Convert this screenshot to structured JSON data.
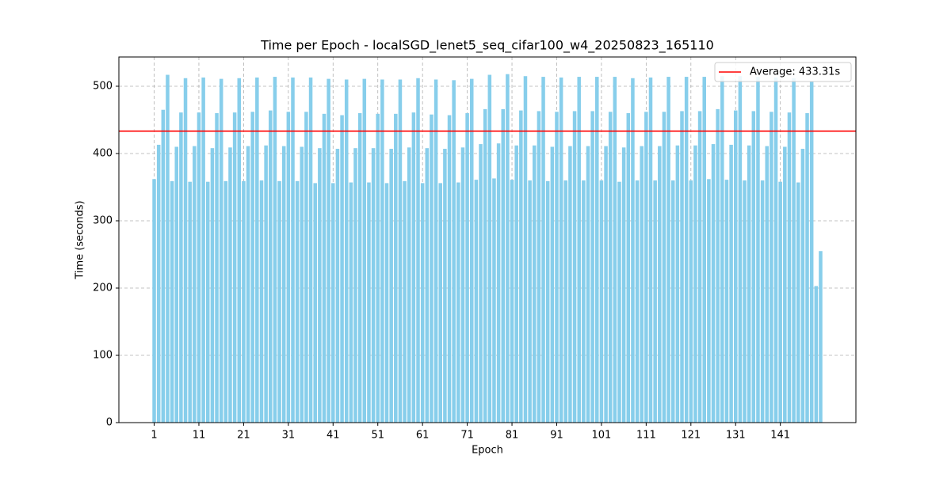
{
  "chart_data": {
    "type": "bar",
    "title": "Time per Epoch - localSGD_lenet5_seq_cifar100_w4_20250823_165110",
    "x_label": "Epoch",
    "y_label": "Time (seconds)",
    "x": [
      1,
      2,
      3,
      4,
      5,
      6,
      7,
      8,
      9,
      10,
      11,
      12,
      13,
      14,
      15,
      16,
      17,
      18,
      19,
      20,
      21,
      22,
      23,
      24,
      25,
      26,
      27,
      28,
      29,
      30,
      31,
      32,
      33,
      34,
      35,
      36,
      37,
      38,
      39,
      40,
      41,
      42,
      43,
      44,
      45,
      46,
      47,
      48,
      49,
      50,
      51,
      52,
      53,
      54,
      55,
      56,
      57,
      58,
      59,
      60,
      61,
      62,
      63,
      64,
      65,
      66,
      67,
      68,
      69,
      70,
      71,
      72,
      73,
      74,
      75,
      76,
      77,
      78,
      79,
      80,
      81,
      82,
      83,
      84,
      85,
      86,
      87,
      88,
      89,
      90,
      91,
      92,
      93,
      94,
      95,
      96,
      97,
      98,
      99,
      100,
      101,
      102,
      103,
      104,
      105,
      106,
      107,
      108,
      109,
      110,
      111,
      112,
      113,
      114,
      115,
      116,
      117,
      118,
      119,
      120,
      121,
      122,
      123,
      124,
      125,
      126,
      127,
      128,
      129,
      130,
      131,
      132,
      133,
      134,
      135,
      136,
      137,
      138,
      139,
      140,
      141,
      142,
      143,
      144,
      145,
      146,
      147,
      148,
      149,
      150
    ],
    "values": [
      362,
      413,
      465,
      517,
      359,
      410,
      461,
      512,
      358,
      411,
      461,
      513,
      358,
      408,
      460,
      511,
      359,
      409,
      461,
      512,
      359,
      411,
      462,
      513,
      360,
      412,
      464,
      514,
      359,
      411,
      462,
      513,
      359,
      410,
      462,
      513,
      356,
      408,
      459,
      511,
      356,
      407,
      457,
      510,
      357,
      408,
      460,
      511,
      357,
      408,
      459,
      510,
      356,
      407,
      459,
      510,
      359,
      409,
      461,
      512,
      356,
      408,
      458,
      510,
      356,
      407,
      457,
      509,
      357,
      409,
      460,
      511,
      361,
      414,
      466,
      517,
      363,
      415,
      466,
      518,
      361,
      412,
      464,
      515,
      360,
      412,
      463,
      514,
      359,
      410,
      462,
      513,
      360,
      411,
      463,
      514,
      360,
      411,
      463,
      514,
      360,
      411,
      462,
      514,
      358,
      409,
      460,
      512,
      360,
      411,
      462,
      513,
      360,
      411,
      462,
      514,
      360,
      412,
      463,
      514,
      360,
      412,
      463,
      514,
      362,
      414,
      466,
      515,
      361,
      413,
      464,
      515,
      360,
      412,
      463,
      514,
      360,
      411,
      462,
      513,
      358,
      410,
      461,
      512,
      357,
      407,
      460,
      507,
      203,
      255
    ],
    "color": "#87ceeb",
    "average": {
      "name": "Average: 433.31s",
      "value": 433.31,
      "color": "#ff0000"
    },
    "xlim": [
      -6.89,
      157.89
    ],
    "xticks": [
      1,
      11,
      21,
      31,
      41,
      51,
      61,
      71,
      81,
      91,
      101,
      111,
      121,
      131,
      141
    ],
    "ylim": [
      0,
      543.5
    ],
    "yticks": [
      0,
      100,
      200,
      300,
      400,
      500
    ],
    "grid": true,
    "legend_position": "upper-right"
  }
}
